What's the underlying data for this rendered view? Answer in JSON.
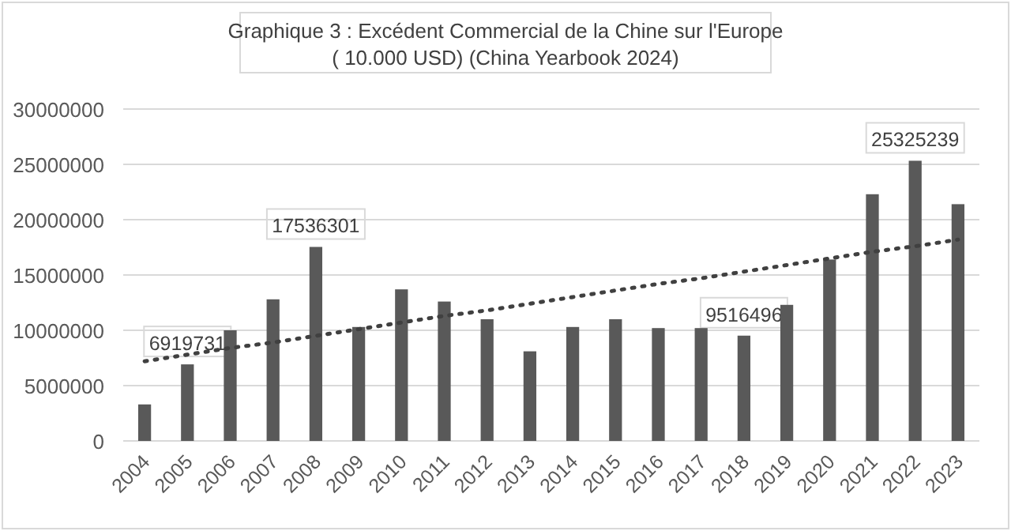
{
  "chart_data": {
    "type": "bar",
    "title": "Graphique 3 : Excédent Commercial de la Chine sur l'Europe\n( 10.000 USD) (China Yearbook 2024)",
    "categories": [
      "2004",
      "2005",
      "2006",
      "2007",
      "2008",
      "2009",
      "2010",
      "2011",
      "2012",
      "2013",
      "2014",
      "2015",
      "2016",
      "2017",
      "2018",
      "2019",
      "2020",
      "2021",
      "2022",
      "2023"
    ],
    "series": [
      {
        "color": "#595959",
        "values": [
          3300000,
          6919731,
          10000000,
          12800000,
          17536301,
          10300000,
          13700000,
          12600000,
          11000000,
          8100000,
          10300000,
          11000000,
          10200000,
          10200000,
          9516496,
          12300000,
          16400000,
          22300000,
          25325239,
          21400000
        ],
        "value_labels": [
          null,
          "6919731",
          null,
          null,
          "17536301",
          null,
          null,
          null,
          null,
          null,
          null,
          null,
          null,
          null,
          "9516496",
          null,
          null,
          null,
          "25325239",
          null
        ]
      },
      {
        "type": "line",
        "values": [
          7200000,
          7800000,
          8400000,
          8900000,
          9500000,
          10100000,
          10700000,
          11300000,
          11800000,
          12400000,
          13000000,
          13600000,
          14200000,
          14700000,
          15300000,
          15900000,
          16500000,
          17100000,
          17600000,
          18200000
        ],
        "color": "#404040",
        "line_style": "dotted",
        "marker": "none"
      }
    ],
    "ylim": [
      0,
      30000000
    ],
    "yticks": [
      0,
      5000000,
      10000000,
      15000000,
      20000000,
      25000000,
      30000000
    ],
    "grid": "y"
  }
}
